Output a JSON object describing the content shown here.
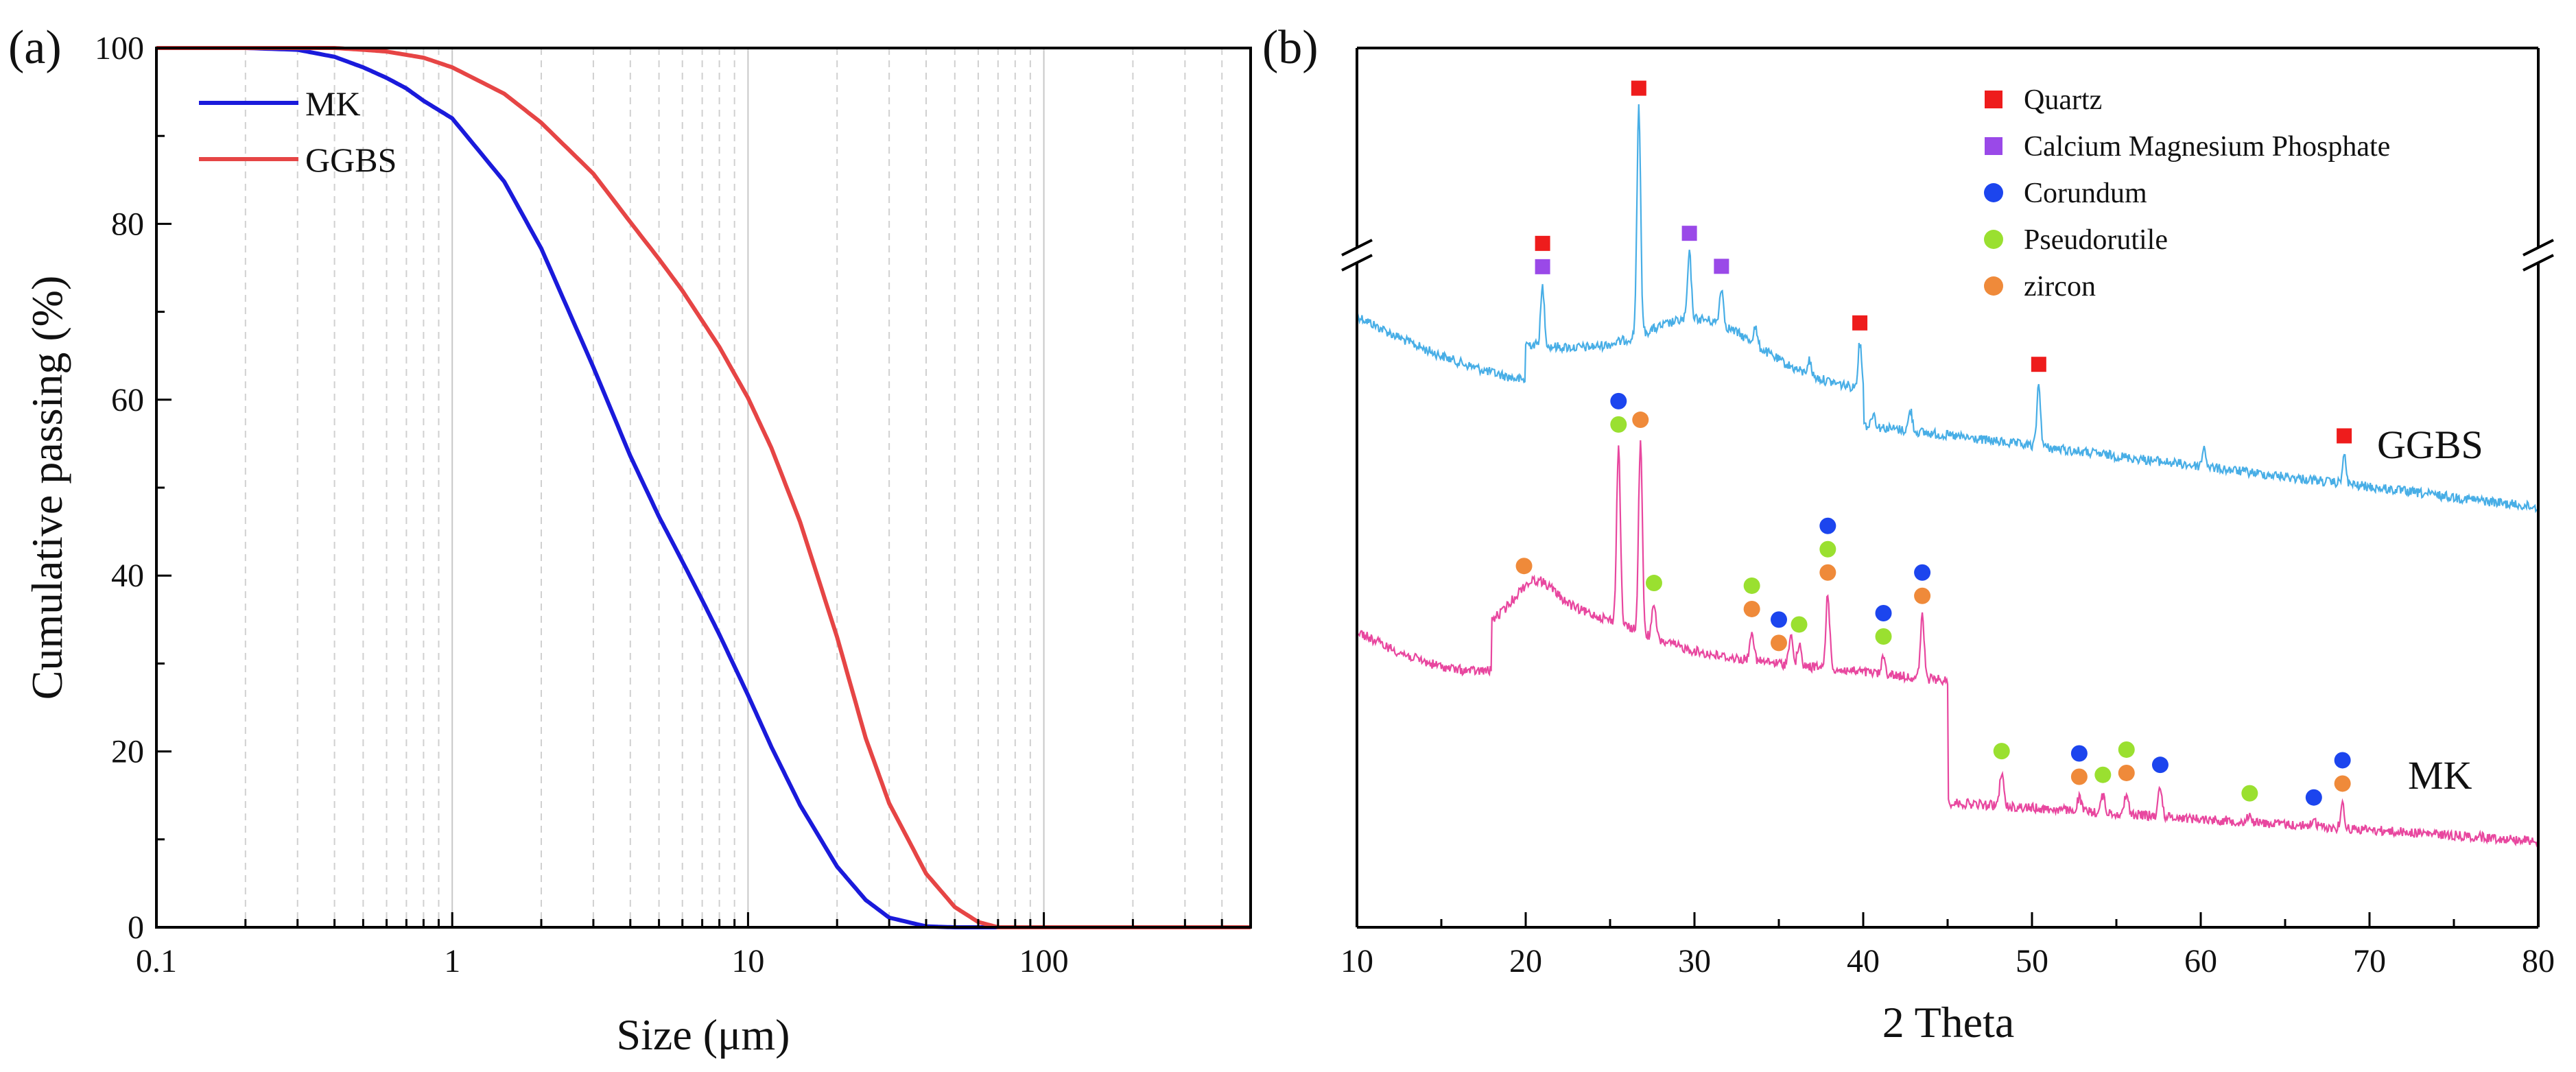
{
  "chart_data": [
    {
      "panel_label": "(a)",
      "type": "line",
      "title": "",
      "xlabel": "Size (μm)",
      "ylabel": "Cumulative passing (%)",
      "xscale": "log",
      "xlim": [
        0.1,
        500
      ],
      "ylim": [
        0,
        100
      ],
      "xtick_labels": [
        "0.1",
        "1",
        "10",
        "100"
      ],
      "ytick_labels": [
        "0",
        "20",
        "40",
        "60",
        "80",
        "100"
      ],
      "grid": "vertical dashed at minor log ticks",
      "legend_position": "top-left",
      "series": [
        {
          "name": "MK",
          "color": "#1a1adb",
          "x": [
            0.1,
            0.2,
            0.3,
            0.4,
            0.5,
            0.6,
            0.7,
            0.8,
            1,
            1.5,
            2,
            3,
            4,
            5,
            6,
            7,
            8,
            10,
            12,
            15,
            20,
            25,
            30,
            40,
            50,
            60,
            70
          ],
          "y": [
            100,
            100,
            99.8,
            99.0,
            97.8,
            96.6,
            95.4,
            94.0,
            92.0,
            84.8,
            77.2,
            63.7,
            53.6,
            46.7,
            41.6,
            37.2,
            33.3,
            26.4,
            20.5,
            13.9,
            6.9,
            3.1,
            1.1,
            0.1,
            0,
            0,
            0
          ]
        },
        {
          "name": "GGBS",
          "color": "#e64545",
          "x": [
            0.1,
            0.2,
            0.3,
            0.4,
            0.5,
            0.6,
            0.8,
            1,
            1.5,
            2,
            3,
            4,
            5,
            6,
            8,
            10,
            12,
            15,
            20,
            25,
            30,
            40,
            50,
            60,
            70,
            80,
            100,
            500
          ],
          "y": [
            100,
            100,
            100,
            100,
            99.8,
            99.6,
            98.9,
            97.8,
            94.8,
            91.5,
            85.7,
            80.2,
            76.0,
            72.4,
            66.0,
            60.2,
            54.5,
            46.1,
            33.0,
            21.5,
            14.1,
            6.1,
            2.3,
            0.6,
            0,
            0,
            0,
            0
          ]
        }
      ]
    },
    {
      "panel_label": "(b)",
      "type": "line",
      "title": "",
      "xlabel": "2 Theta",
      "ylabel": "",
      "xlim": [
        10,
        80
      ],
      "xtick_labels": [
        "10",
        "20",
        "30",
        "40",
        "50",
        "60",
        "70",
        "80"
      ],
      "y_axis_break": true,
      "legend_position": "top-right",
      "series": [
        {
          "name": "GGBS",
          "label": "GGBS",
          "color": "#48aee6"
        },
        {
          "name": "MK",
          "label": "MK",
          "color": "#e8479f"
        }
      ],
      "peaks_legend": [
        {
          "name": "Quartz",
          "marker": "square",
          "color": "#ee1c1c"
        },
        {
          "name": "Calcium Magnesium Phosphate",
          "marker": "square",
          "color": "#9a49e8"
        },
        {
          "name": "Corundum",
          "marker": "circle",
          "color": "#1c45ee"
        },
        {
          "name": "Pseudorutile",
          "marker": "circle",
          "color": "#9ae030"
        },
        {
          "name": "zircon",
          "marker": "circle",
          "color": "#ef8a3a"
        }
      ],
      "peak_markers": {
        "GGBS": [
          {
            "two_theta": 21.0,
            "phases": [
              "Quartz",
              "Calcium Magnesium Phosphate"
            ]
          },
          {
            "two_theta": 26.7,
            "phases": [
              "Quartz"
            ]
          },
          {
            "two_theta": 29.7,
            "phases": [
              "Calcium Magnesium Phosphate"
            ]
          },
          {
            "two_theta": 31.6,
            "phases": [
              "Calcium Magnesium Phosphate"
            ]
          },
          {
            "two_theta": 39.8,
            "phases": [
              "Quartz"
            ]
          },
          {
            "two_theta": 50.4,
            "phases": [
              "Quartz"
            ]
          },
          {
            "two_theta": 68.5,
            "phases": [
              "Quartz"
            ]
          }
        ],
        "MK": [
          {
            "two_theta": 19.9,
            "phases": [
              "zircon"
            ]
          },
          {
            "two_theta": 25.5,
            "phases": [
              "Corundum",
              "Pseudorutile"
            ]
          },
          {
            "two_theta": 26.8,
            "phases": [
              "zircon"
            ]
          },
          {
            "two_theta": 27.6,
            "phases": [
              "Pseudorutile"
            ]
          },
          {
            "two_theta": 33.4,
            "phases": [
              "Pseudorutile",
              "zircon"
            ]
          },
          {
            "two_theta": 35.0,
            "phases": [
              "Corundum",
              "zircon"
            ]
          },
          {
            "two_theta": 36.2,
            "phases": [
              "Pseudorutile"
            ]
          },
          {
            "two_theta": 37.9,
            "phases": [
              "Corundum",
              "Pseudorutile",
              "zircon"
            ]
          },
          {
            "two_theta": 41.2,
            "phases": [
              "Corundum",
              "Pseudorutile"
            ]
          },
          {
            "two_theta": 43.5,
            "phases": [
              "Corundum",
              "zircon"
            ]
          },
          {
            "two_theta": 48.2,
            "phases": [
              "Pseudorutile"
            ]
          },
          {
            "two_theta": 52.8,
            "phases": [
              "Corundum",
              "zircon"
            ]
          },
          {
            "two_theta": 54.2,
            "phases": [
              "Pseudorutile"
            ]
          },
          {
            "two_theta": 55.6,
            "phases": [
              "Pseudorutile",
              "zircon"
            ]
          },
          {
            "two_theta": 57.6,
            "phases": [
              "Corundum"
            ]
          },
          {
            "two_theta": 62.9,
            "phases": [
              "Pseudorutile"
            ]
          },
          {
            "two_theta": 66.7,
            "phases": [
              "Corundum"
            ]
          },
          {
            "two_theta": 68.4,
            "phases": [
              "Corundum",
              "zircon"
            ]
          }
        ]
      }
    }
  ]
}
